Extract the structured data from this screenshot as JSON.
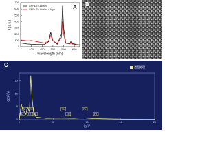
{
  "chart_data": [
    {
      "type": "line",
      "label": "A",
      "xlabel": "wavelength (nm)",
      "ylabel": "I (a.u.)",
      "x": [
        350,
        380,
        400,
        430,
        460,
        480,
        490,
        500,
        520,
        540,
        545,
        550,
        560,
        580,
        585,
        590,
        610,
        625
      ],
      "series": [
        {
          "name": "GNPs-Tb-labeled",
          "color": "#111111",
          "values": [
            60,
            45,
            40,
            35,
            35,
            80,
            230,
            100,
            40,
            200,
            650,
            300,
            60,
            50,
            100,
            55,
            35,
            30
          ]
        },
        {
          "name": "GNPs-Tb-labeled + Hg²⁺",
          "color": "#d62020",
          "values": [
            110,
            95,
            100,
            80,
            60,
            90,
            180,
            95,
            55,
            150,
            400,
            200,
            55,
            45,
            80,
            45,
            30,
            25
          ]
        }
      ],
      "xlim": [
        350,
        625
      ],
      "xticks": [
        400,
        450,
        500,
        550,
        600
      ],
      "ylim": [
        0,
        700
      ],
      "yticks": [
        0,
        100,
        200,
        300,
        400,
        500,
        600,
        700
      ],
      "legend": "upper-left"
    },
    {
      "type": "spectrum",
      "label": "C",
      "xlabel": "keV",
      "ylabel": "cps/eV",
      "x": [
        0,
        0.3,
        0.5,
        1.0,
        1.2,
        1.5,
        1.7,
        1.9,
        2.1,
        2.5,
        4,
        6,
        8,
        9.4,
        11,
        13,
        15,
        20
      ],
      "series": [
        {
          "name": "谱图处理",
          "color": "#f2ee7a",
          "values": [
            0,
            6,
            4,
            2,
            5,
            3,
            17,
            8,
            3,
            1,
            0.5,
            0.6,
            0.5,
            0.7,
            0.4,
            0.3,
            0.2,
            0.1
          ]
        }
      ],
      "annotations": [
        {
          "text": "C",
          "x": 0.28
        },
        {
          "text": "O",
          "x": 0.52
        },
        {
          "text": "Tb",
          "x": 1.24
        },
        {
          "text": "Tb",
          "x": 1.5
        },
        {
          "text": "Pt",
          "x": 2.05
        },
        {
          "text": "Tb",
          "x": 6.27
        },
        {
          "text": "Tb",
          "x": 6.98
        },
        {
          "text": "Pt",
          "x": 9.44
        },
        {
          "text": "Pt",
          "x": 11.07
        }
      ],
      "xlim": [
        0,
        20
      ],
      "xticks": [
        0,
        5,
        10,
        15,
        20
      ],
      "ylim": [
        0,
        18
      ],
      "yticks": [
        0,
        5,
        10,
        15
      ],
      "legend": "upper-right"
    }
  ],
  "image_panel": {
    "label": "B"
  }
}
